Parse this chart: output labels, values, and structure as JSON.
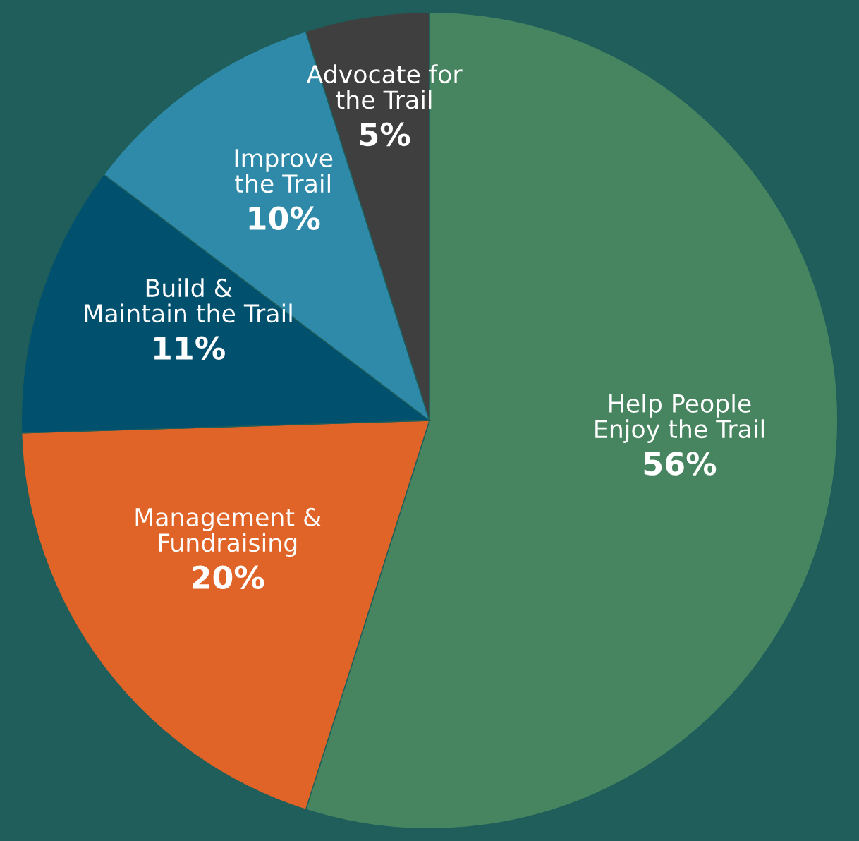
{
  "chart_data": {
    "type": "pie",
    "categories": [
      "Help People\nEnjoy the Trail",
      "Management &\nFundraising",
      "Build &\nMaintain the Trail",
      "Improve\nthe Trail",
      "Advocate for\nthe Trail"
    ],
    "values": [
      56,
      20,
      11,
      10,
      5
    ],
    "value_labels": [
      "56%",
      "20%",
      "11%",
      "10%",
      "5%"
    ],
    "colors": [
      "#46855f",
      "#e06428",
      "#00506e",
      "#2e8aa8",
      "#3f3f3f"
    ],
    "legend": false
  }
}
